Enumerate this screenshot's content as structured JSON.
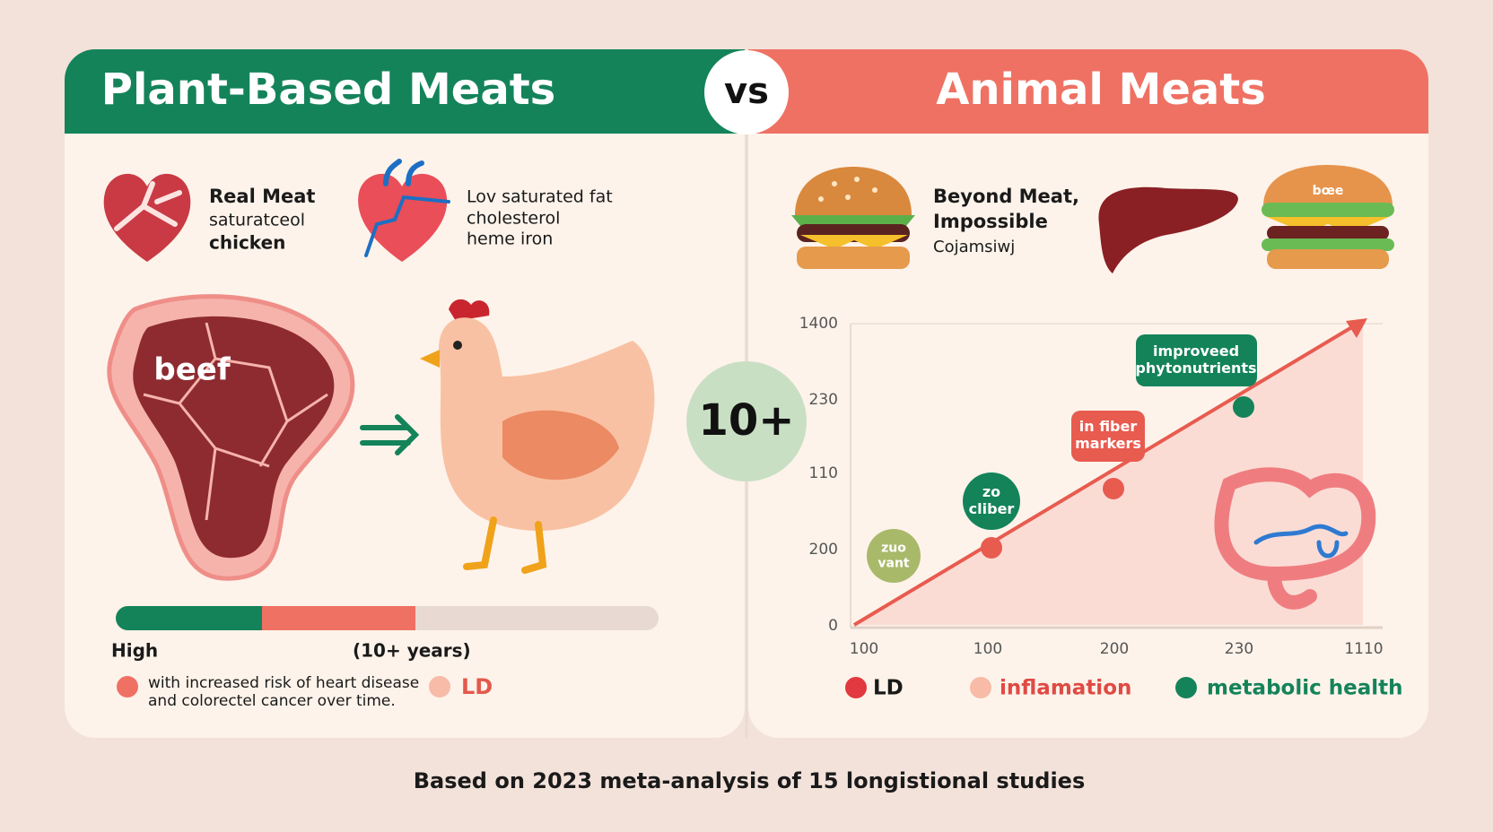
{
  "header": {
    "left_title": "Plant-Based Meats",
    "vs": "vs",
    "right_title": "Animal Meats"
  },
  "left_panel": {
    "item1": [
      "Real Meat",
      "saturatceol",
      "chicken"
    ],
    "item2": [
      "Lov saturated fat",
      "cholesterol",
      "heme iron"
    ],
    "steak_label": "beef",
    "bar_labels": {
      "start": "High",
      "mid": "(10+ years)"
    },
    "legend": {
      "note": [
        "with increased risk of heart disease",
        "and colorectel cancer over time."
      ],
      "ld": "LD"
    }
  },
  "center_badge": "10+",
  "right_panel": {
    "item": [
      "Beyond Meat,",
      "Impossible",
      "Cojamsiwj"
    ],
    "burger_label": "bœe",
    "chart": {
      "y_labels": [
        "1400",
        "230",
        "110",
        "200",
        "0"
      ],
      "x_labels": [
        "100",
        "100",
        "200",
        "230",
        "1110"
      ],
      "callouts": [
        [
          "zuo",
          "vant"
        ],
        [
          "zo",
          "cliber"
        ],
        [
          "in fiber",
          "markers"
        ],
        [
          "improveed",
          "phytonutrients"
        ]
      ]
    },
    "legend": [
      "LD",
      "inflamation",
      "metabolic health"
    ]
  },
  "footer": "Based on 2023 meta-analysis of 15 longistional studies"
}
